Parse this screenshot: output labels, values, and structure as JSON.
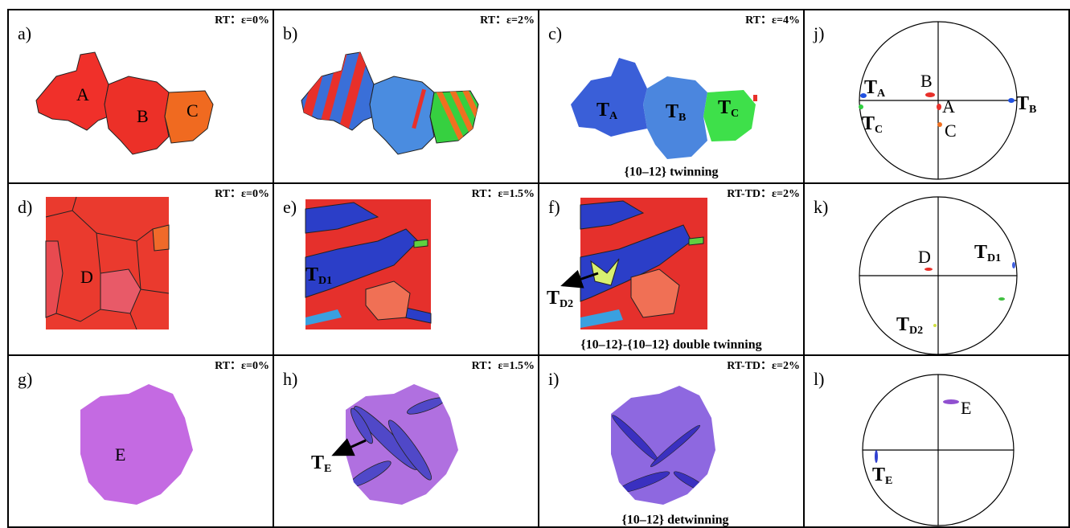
{
  "panels": [
    {
      "letter": "a)",
      "condition": "RT：ε=0%",
      "labels": [
        {
          "text": "A"
        },
        {
          "text": "B"
        },
        {
          "text": "C"
        }
      ]
    },
    {
      "letter": "b)",
      "condition": "RT：ε=2%"
    },
    {
      "letter": "c)",
      "condition": "RT：ε=4%",
      "labels": [
        {
          "text": "T",
          "sub": "A"
        },
        {
          "text": "T",
          "sub": "B"
        },
        {
          "text": "T",
          "sub": "C"
        }
      ],
      "caption": "{10–12} twinning"
    },
    {
      "letter": "j)",
      "labels": [
        {
          "text": "T",
          "sub": "A"
        },
        {
          "text": "B"
        },
        {
          "text": "A"
        },
        {
          "text": "T",
          "sub": "B"
        },
        {
          "text": "T",
          "sub": "C"
        },
        {
          "text": "C"
        }
      ]
    },
    {
      "letter": "d)",
      "condition": "RT：ε=0%",
      "labels": [
        {
          "text": "D"
        }
      ]
    },
    {
      "letter": "e)",
      "condition": "RT：ε=1.5%",
      "labels": [
        {
          "text": "T",
          "sub": "D1"
        }
      ]
    },
    {
      "letter": "f)",
      "condition": "RT-TD：ε=2%",
      "labels": [
        {
          "text": "T",
          "sub": "D2"
        }
      ],
      "caption": "{10–12}-{10–12} double twinning"
    },
    {
      "letter": "k)",
      "labels": [
        {
          "text": "D"
        },
        {
          "text": "T",
          "sub": "D1"
        },
        {
          "text": "T",
          "sub": "D2"
        }
      ]
    },
    {
      "letter": "g)",
      "condition": "RT：ε=0%",
      "labels": [
        {
          "text": "E"
        }
      ]
    },
    {
      "letter": "h)",
      "condition": "RT：ε=1.5%",
      "labels": [
        {
          "text": "T",
          "sub": "E"
        }
      ]
    },
    {
      "letter": "i)",
      "condition": "RT-TD：ε=2%",
      "caption": "{10–12} detwinning"
    },
    {
      "letter": "l)",
      "labels": [
        {
          "text": "E"
        },
        {
          "text": "T",
          "sub": "E"
        }
      ]
    }
  ]
}
